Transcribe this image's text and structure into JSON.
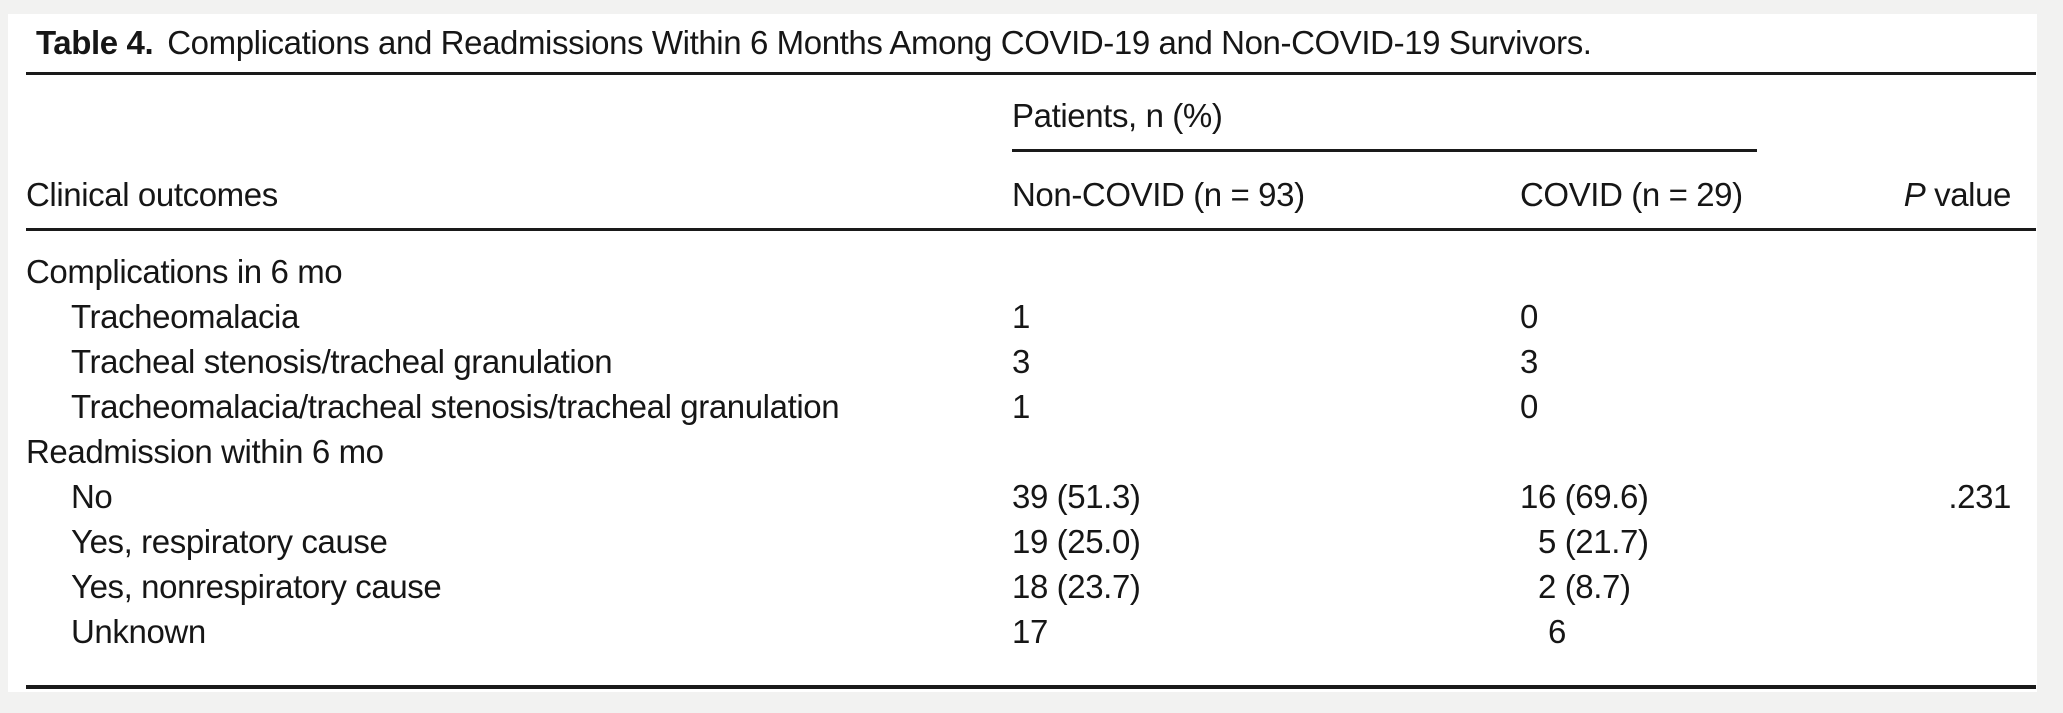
{
  "colors": {
    "background": "#f2f2f1",
    "surface": "#ffffff",
    "rule": "#1a1a1a",
    "text": "#161616"
  },
  "table": {
    "title": {
      "label": "Table 4.",
      "text": "Complications and Readmissions Within 6 Months Among COVID-19 and Non-COVID-19 Survivors."
    },
    "header": {
      "spanner": "Patients, n (%)",
      "outcome": "Clinical outcomes",
      "non_covid": "Non-COVID (n = 93)",
      "covid": "COVID (n = 29)",
      "p_italic": "P",
      "p_rest": " value"
    },
    "rows": [
      {
        "label": "Complications in 6 mo",
        "non_covid": "",
        "covid": "",
        "p": ""
      },
      {
        "label": "Tracheomalacia",
        "non_covid": "1",
        "covid": "0",
        "p": ""
      },
      {
        "label": "Tracheal stenosis/tracheal granulation",
        "non_covid": "3",
        "covid": "3",
        "p": ""
      },
      {
        "label": "Tracheomalacia/tracheal stenosis/tracheal granulation",
        "non_covid": "1",
        "covid": "0",
        "p": ""
      },
      {
        "label": "Readmission within 6 mo",
        "non_covid": "",
        "covid": "",
        "p": ""
      },
      {
        "label": "No",
        "non_covid": "39 (51.3)",
        "covid": "16 (69.6)",
        "p": ".231"
      },
      {
        "label": "Yes, respiratory cause",
        "non_covid": "19 (25.0)",
        "covid": "5 (21.7)",
        "p": ""
      },
      {
        "label": "Yes, nonrespiratory cause",
        "non_covid": "18 (23.7)",
        "covid": "2 (8.7)",
        "p": ""
      },
      {
        "label": "Unknown",
        "non_covid": "17",
        "covid": "6",
        "p": ""
      }
    ]
  }
}
